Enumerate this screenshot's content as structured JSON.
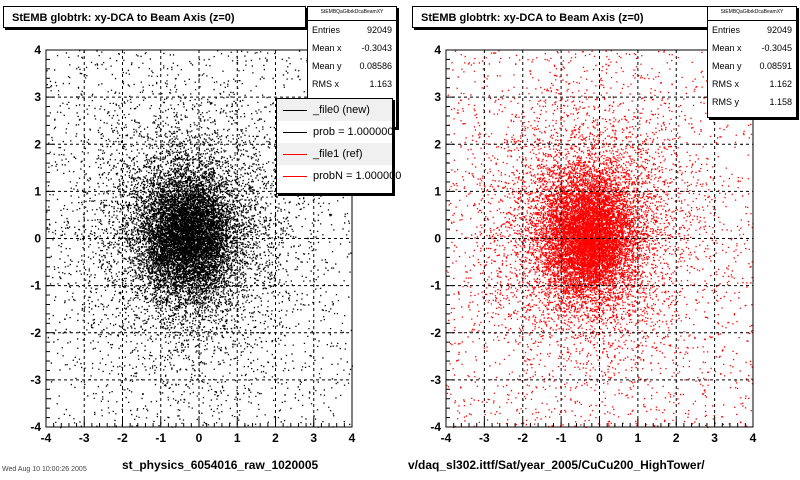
{
  "chart_data": [
    {
      "type": "scatter",
      "title": "StEMB globtrk: xy-DCA to Beam Axis (z=0)",
      "xlabel": "st_physics_6054016_raw_1020005",
      "ylabel": "",
      "xlim": [
        -4,
        4
      ],
      "ylim": [
        -4,
        4
      ],
      "xticks": [
        "-4",
        "-3",
        "-2",
        "-1",
        "0",
        "1",
        "2",
        "3",
        "4"
      ],
      "yticks": [
        "-4",
        "-3",
        "-2",
        "-1",
        "0",
        "1",
        "2",
        "3",
        "4"
      ],
      "grid": true,
      "marker_color": "#000000",
      "stats": {
        "name": "StEMBQaGlbrkDcaBeamXY",
        "rows": [
          {
            "label": "Entries",
            "value": "92049"
          },
          {
            "label": "Mean x",
            "value": "-0.3043"
          },
          {
            "label": "Mean y",
            "value": "0.08586"
          },
          {
            "label": "RMS x",
            "value": "1.163"
          }
        ]
      },
      "distribution": {
        "entries": 92049,
        "mean_x": -0.3043,
        "mean_y": 0.08586,
        "rms_x": 1.163
      },
      "legend": {
        "placement": "right",
        "entries": [
          {
            "label": "_file0 (new)",
            "color": "#000000"
          },
          {
            "label": "prob = 1.000000",
            "color": "#000000"
          },
          {
            "label": "_file1 (ref)",
            "color": "#ff0000"
          },
          {
            "label": "probN = 1.000000",
            "color": "#ff0000"
          }
        ]
      }
    },
    {
      "type": "scatter",
      "title": "StEMB globtrk: xy-DCA to Beam Axis (z=0)",
      "xlabel": "v/daq_sl302.ittf/Sat/year_2005/CuCu200_HighTower/",
      "ylabel": "",
      "xlim": [
        -4,
        4
      ],
      "ylim": [
        -4,
        4
      ],
      "xticks": [
        "-4",
        "-3",
        "-2",
        "-1",
        "0",
        "1",
        "2",
        "3",
        "4"
      ],
      "yticks": [
        "-4",
        "-3",
        "-2",
        "-1",
        "0",
        "1",
        "2",
        "3",
        "4"
      ],
      "grid": true,
      "marker_color": "#ff0000",
      "stats": {
        "name": "StEMBQaGlbrkDcaBeamXY",
        "rows": [
          {
            "label": "Entries",
            "value": "92049"
          },
          {
            "label": "Mean x",
            "value": "-0.3045"
          },
          {
            "label": "Mean y",
            "value": "0.08591"
          },
          {
            "label": "RMS x",
            "value": "1.162"
          },
          {
            "label": "RMS y",
            "value": "1.158"
          }
        ]
      },
      "distribution": {
        "entries": 92049,
        "mean_x": -0.3045,
        "mean_y": 0.08591,
        "rms_x": 1.162,
        "rms_y": 1.158
      }
    }
  ],
  "footer": "Wed Aug 10 10:00:26 2005"
}
